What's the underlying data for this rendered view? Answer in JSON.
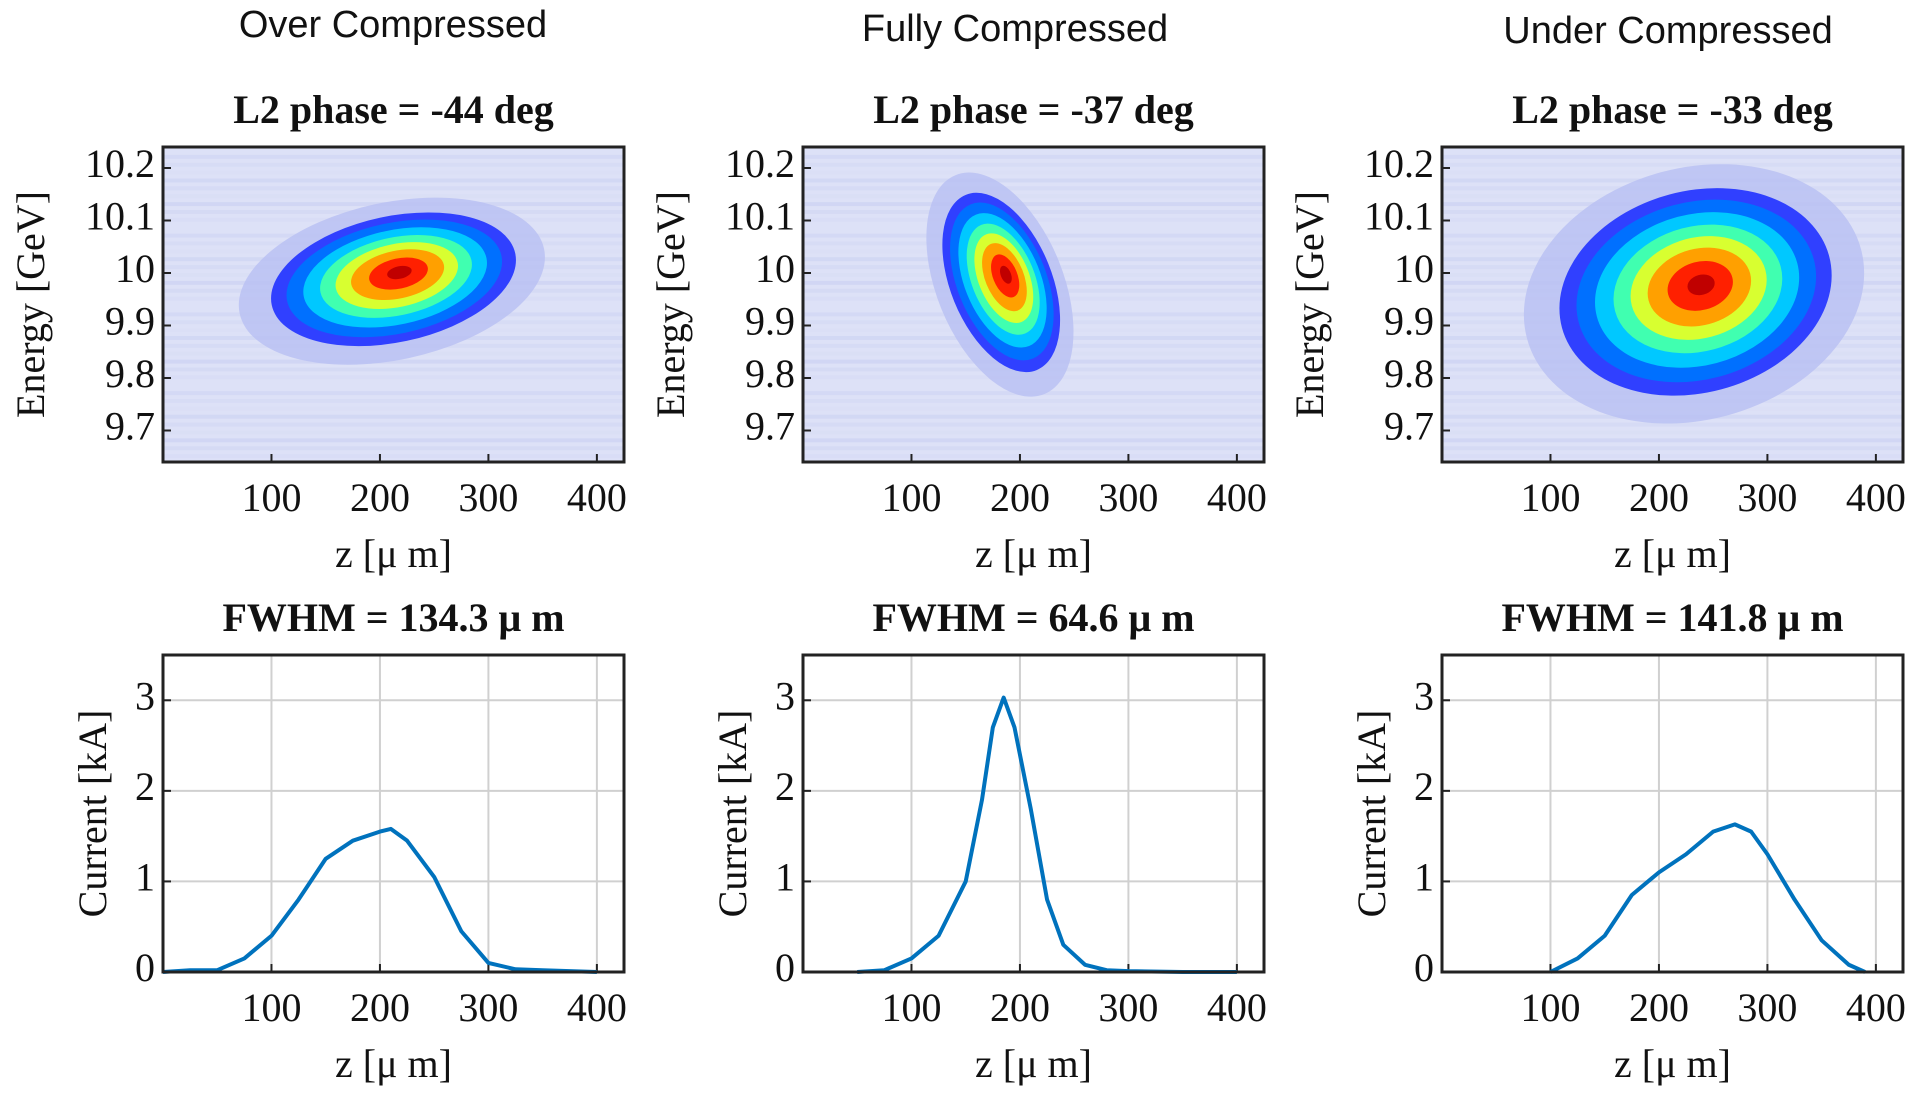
{
  "column_labels": [
    "Over Compressed",
    "Fully Compressed",
    "Under Compressed"
  ],
  "chart_data": [
    {
      "type": "heatmap",
      "title": "L2 phase = -44 deg",
      "xlabel": "z [μ m]",
      "ylabel": "Energy [GeV]",
      "xlim": [
        0,
        425
      ],
      "ylim": [
        9.64,
        10.24
      ],
      "xticks": [
        100,
        200,
        300,
        400
      ],
      "yticks": [
        9.7,
        9.8,
        9.9,
        10,
        10.1,
        10.2
      ]
    },
    {
      "type": "heatmap",
      "title": "L2 phase = -37 deg",
      "xlabel": "z [μ m]",
      "ylabel": "Energy [GeV]",
      "xlim": [
        0,
        425
      ],
      "ylim": [
        9.64,
        10.24
      ],
      "xticks": [
        100,
        200,
        300,
        400
      ],
      "yticks": [
        9.7,
        9.8,
        9.9,
        10,
        10.1,
        10.2
      ]
    },
    {
      "type": "heatmap",
      "title": "L2 phase = -33 deg",
      "xlabel": "z [μ m]",
      "ylabel": "Energy [GeV]",
      "xlim": [
        0,
        425
      ],
      "ylim": [
        9.64,
        10.24
      ],
      "xticks": [
        100,
        200,
        300,
        400
      ],
      "yticks": [
        9.7,
        9.8,
        9.9,
        10,
        10.1,
        10.2
      ]
    },
    {
      "type": "line",
      "title": "FWHM = 134.3 μ m",
      "xlabel": "z [μ m]",
      "ylabel": "Current [kA]",
      "color": "#0072bd",
      "grid": true,
      "xlim": [
        0,
        425
      ],
      "ylim": [
        0,
        3.5
      ],
      "xticks": [
        100,
        200,
        300,
        400
      ],
      "yticks": [
        0,
        1,
        2,
        3
      ],
      "x": [
        0,
        25,
        50,
        75,
        100,
        125,
        150,
        175,
        200,
        210,
        225,
        250,
        275,
        300,
        325,
        350,
        375,
        400
      ],
      "values": [
        0,
        0.02,
        0.02,
        0.15,
        0.4,
        0.8,
        1.25,
        1.45,
        1.55,
        1.58,
        1.45,
        1.05,
        0.45,
        0.1,
        0.03,
        0.02,
        0.01,
        0
      ]
    },
    {
      "type": "line",
      "title": "FWHM = 64.6 μ m",
      "xlabel": "z [μ m]",
      "ylabel": "Current [kA]",
      "color": "#0072bd",
      "grid": true,
      "xlim": [
        0,
        425
      ],
      "ylim": [
        0,
        3.5
      ],
      "xticks": [
        100,
        200,
        300,
        400
      ],
      "yticks": [
        0,
        1,
        2,
        3
      ],
      "x": [
        50,
        75,
        100,
        125,
        150,
        165,
        175,
        185,
        195,
        210,
        225,
        240,
        260,
        280,
        300,
        350,
        400
      ],
      "values": [
        0,
        0.02,
        0.15,
        0.4,
        1.0,
        1.9,
        2.7,
        3.03,
        2.7,
        1.8,
        0.8,
        0.3,
        0.08,
        0.02,
        0.01,
        0,
        0
      ]
    },
    {
      "type": "line",
      "title": "FWHM = 141.8 μ m",
      "xlabel": "z [μ m]",
      "ylabel": "Current [kA]",
      "color": "#0072bd",
      "grid": true,
      "xlim": [
        0,
        425
      ],
      "ylim": [
        0,
        3.5
      ],
      "xticks": [
        100,
        200,
        300,
        400
      ],
      "yticks": [
        0,
        1,
        2,
        3
      ],
      "x": [
        100,
        125,
        150,
        175,
        200,
        225,
        250,
        270,
        285,
        300,
        325,
        350,
        375,
        390
      ],
      "values": [
        0,
        0.15,
        0.4,
        0.85,
        1.1,
        1.3,
        1.55,
        1.63,
        1.55,
        1.3,
        0.8,
        0.35,
        0.08,
        0
      ]
    }
  ]
}
